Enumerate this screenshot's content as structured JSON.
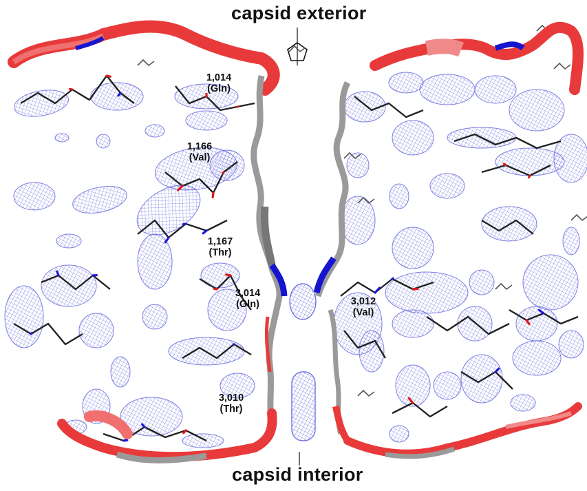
{
  "figure": {
    "top_label": "capsid exterior",
    "bottom_label": "capsid interior",
    "symmetry_icon": "pentagon-fivefold-axis-icon"
  },
  "residues": [
    {
      "number": "1,014",
      "aa": "(Gln)"
    },
    {
      "number": "1,166",
      "aa": "(Val)"
    },
    {
      "number": "1,167",
      "aa": "(Thr)"
    },
    {
      "number": "3,014",
      "aa": "(Gln)"
    },
    {
      "number": "3,012",
      "aa": "(Val)"
    },
    {
      "number": "3,010",
      "aa": "(Thr)"
    }
  ],
  "colors": {
    "mesh": "#6f72e0",
    "ribbon_red": "#e83a3a",
    "ribbon_blue": "#1515d0",
    "ribbon_gray": "#9a9a9a",
    "stick": "#222222",
    "oxygen": "#e01818",
    "nitrogen": "#1a1ad8"
  }
}
